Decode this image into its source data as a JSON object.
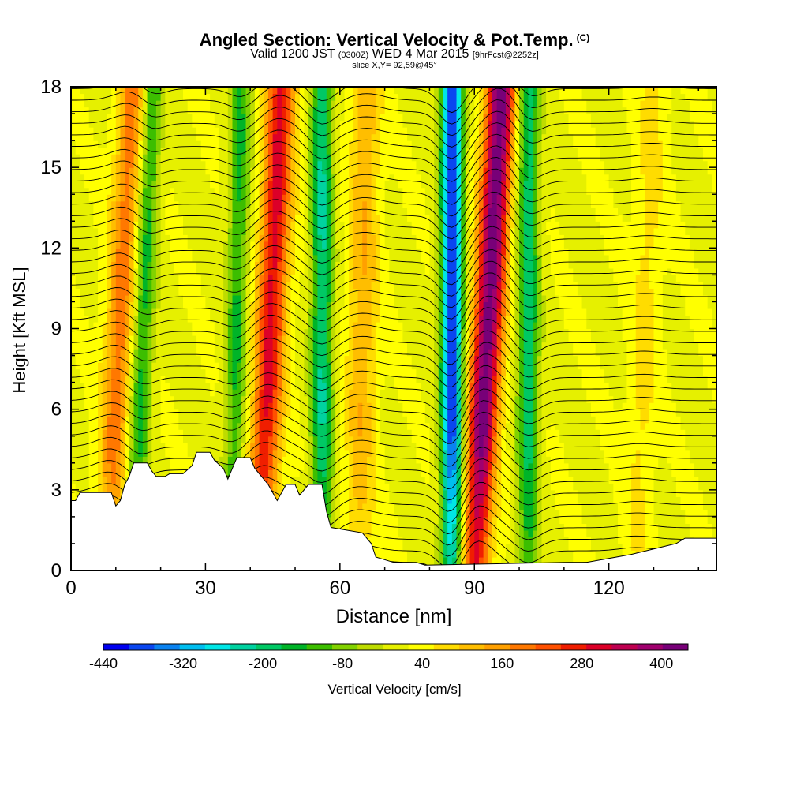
{
  "header": {
    "title": "Angled Section: Vertical Velocity & Pot.Temp.",
    "title_mark": "(C)",
    "valid_prefix": "Valid 1200 JST",
    "valid_utc": "(0300Z)",
    "valid_date": "WED 4 Mar 2015",
    "forecast": "[9hrFcst@2252z]",
    "slice": "slice X,Y= 92,59@45°"
  },
  "chart_data": {
    "type": "heatmap",
    "xlabel": "Distance [nm]",
    "ylabel": "Height [Kft MSL]",
    "xlim": [
      0,
      144
    ],
    "ylim": [
      0,
      18
    ],
    "xticks": [
      0,
      30,
      60,
      90,
      120
    ],
    "yticks": [
      0,
      3,
      6,
      9,
      12,
      15,
      18
    ],
    "colorbar": {
      "label": "Vertical Velocity [cm/s]",
      "tick_labels": [
        "-440",
        "-320",
        "-200",
        "-80",
        "40",
        "160",
        "280",
        "400"
      ],
      "levels": [
        -440,
        -400,
        -360,
        -320,
        -280,
        -240,
        -200,
        -160,
        -120,
        -80,
        -40,
        0,
        40,
        80,
        120,
        160,
        200,
        240,
        280,
        320,
        360,
        400,
        440
      ],
      "colors": [
        "#0000f0",
        "#0a46f0",
        "#0a82f0",
        "#00bef0",
        "#00e6e6",
        "#00d2a0",
        "#00c864",
        "#00b428",
        "#3cbe00",
        "#82d200",
        "#bedc00",
        "#e6f000",
        "#ffff00",
        "#ffdc00",
        "#ffbe00",
        "#ffa000",
        "#ff7800",
        "#ff5000",
        "#f01e00",
        "#dc0028",
        "#be0050",
        "#a0006e",
        "#780078"
      ]
    },
    "updraft_bands": [
      {
        "x_bottom": 8,
        "x_top": 14,
        "peak_cm_s": 190
      },
      {
        "x_bottom": 42,
        "x_top": 47,
        "peak_cm_s": 300
      },
      {
        "x_bottom": 64,
        "x_top": 66,
        "peak_cm_s": 120
      },
      {
        "x_bottom": 90,
        "x_top": 96,
        "peak_cm_s": 440
      },
      {
        "x_bottom": 126,
        "x_top": 130,
        "peak_cm_s": 60
      }
    ],
    "downdraft_bands": [
      {
        "x_bottom": 14,
        "x_top": 18,
        "peak_cm_s": -180
      },
      {
        "x_bottom": 36,
        "x_top": 38,
        "peak_cm_s": -160
      },
      {
        "x_bottom": 56,
        "x_top": 56,
        "peak_cm_s": -240
      },
      {
        "x_bottom": 85,
        "x_top": 85,
        "peak_cm_s": -440
      },
      {
        "x_bottom": 102,
        "x_top": 102,
        "peak_cm_s": -220
      }
    ],
    "terrain_kft": [
      [
        0,
        2.6
      ],
      [
        1,
        2.6
      ],
      [
        2,
        2.9
      ],
      [
        9,
        2.9
      ],
      [
        10,
        2.4
      ],
      [
        11,
        2.6
      ],
      [
        12,
        3.2
      ],
      [
        13,
        3.5
      ],
      [
        14,
        4.0
      ],
      [
        17,
        4.0
      ],
      [
        18,
        3.7
      ],
      [
        19,
        3.5
      ],
      [
        21,
        3.5
      ],
      [
        22,
        3.6
      ],
      [
        25,
        3.6
      ],
      [
        27,
        3.9
      ],
      [
        28,
        4.4
      ],
      [
        31,
        4.4
      ],
      [
        32,
        4.1
      ],
      [
        34,
        3.8
      ],
      [
        35,
        3.4
      ],
      [
        36,
        3.8
      ],
      [
        37,
        4.2
      ],
      [
        40,
        4.2
      ],
      [
        41,
        3.8
      ],
      [
        44,
        3.2
      ],
      [
        46,
        2.6
      ],
      [
        48,
        3.2
      ],
      [
        50,
        3.2
      ],
      [
        51,
        2.8
      ],
      [
        53,
        3.2
      ],
      [
        56,
        3.2
      ],
      [
        57,
        2.2
      ],
      [
        58,
        1.6
      ],
      [
        65,
        1.4
      ],
      [
        67,
        1.0
      ],
      [
        68,
        0.5
      ],
      [
        72,
        0.3
      ],
      [
        75,
        0.3
      ],
      [
        77,
        0.3
      ],
      [
        79,
        0.2
      ],
      [
        110,
        0.3
      ],
      [
        115,
        0.3
      ],
      [
        125,
        0.6
      ],
      [
        135,
        1.0
      ],
      [
        137,
        1.2
      ],
      [
        144,
        1.2
      ]
    ]
  }
}
